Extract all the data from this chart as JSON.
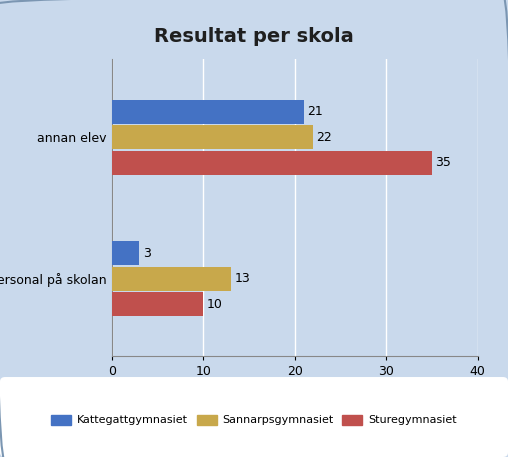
{
  "title": "Resultat per skola",
  "categories": [
    "personal på skolan",
    "annan elev"
  ],
  "series": [
    {
      "label": "Kattegattgymnasiet",
      "values": [
        3,
        21
      ],
      "color": "#4472C4"
    },
    {
      "label": "Sannarpsgymnasiet",
      "values": [
        13,
        22
      ],
      "color": "#C8A84B"
    },
    {
      "label": "Sturegymnasiet",
      "values": [
        10,
        35
      ],
      "color": "#C0504D"
    }
  ],
  "xlim": [
    0,
    40
  ],
  "xticks": [
    0,
    10,
    20,
    30,
    40
  ],
  "background_color": "#C9D9EC",
  "plot_bg_color": "#C9D9EC",
  "legend_bg_color": "#FFFFFF",
  "title_fontsize": 14,
  "label_fontsize": 9,
  "tick_fontsize": 9,
  "bar_height": 0.18,
  "value_fontsize": 9
}
